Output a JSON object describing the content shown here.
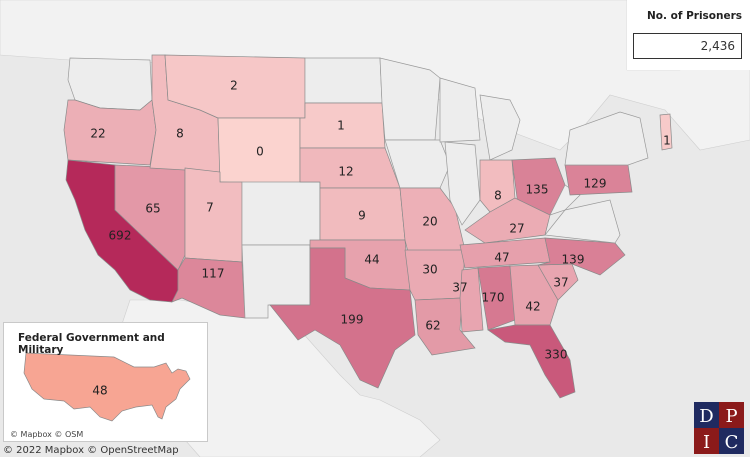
{
  "kpi": {
    "title": "No. of Prisoners",
    "value": "2,436"
  },
  "inset": {
    "title": "Federal Government and Military",
    "value": "48",
    "credit": "© Mapbox  © OSM"
  },
  "credit": "© 2022 Mapbox  © OpenStreetMap",
  "logo": {
    "letters": [
      "D",
      "P",
      "I",
      "C"
    ]
  },
  "states": [
    {
      "name": "Washington",
      "value": null
    },
    {
      "name": "Oregon",
      "value": 22
    },
    {
      "name": "California",
      "value": 692
    },
    {
      "name": "Nevada",
      "value": 65
    },
    {
      "name": "Idaho",
      "value": 8
    },
    {
      "name": "Montana",
      "value": 2
    },
    {
      "name": "Wyoming",
      "value": 0
    },
    {
      "name": "Utah",
      "value": 7
    },
    {
      "name": "Colorado",
      "value": null
    },
    {
      "name": "Arizona",
      "value": 117
    },
    {
      "name": "New Mexico",
      "value": null
    },
    {
      "name": "North Dakota",
      "value": null
    },
    {
      "name": "South Dakota",
      "value": 1
    },
    {
      "name": "Nebraska",
      "value": 12
    },
    {
      "name": "Kansas",
      "value": 9
    },
    {
      "name": "Oklahoma",
      "value": 44
    },
    {
      "name": "Texas",
      "value": 199
    },
    {
      "name": "Minnesota",
      "value": null
    },
    {
      "name": "Iowa",
      "value": null
    },
    {
      "name": "Missouri",
      "value": 20
    },
    {
      "name": "Arkansas",
      "value": 30
    },
    {
      "name": "Louisiana",
      "value": 62
    },
    {
      "name": "Wisconsin",
      "value": null
    },
    {
      "name": "Illinois",
      "value": null
    },
    {
      "name": "Michigan",
      "value": null
    },
    {
      "name": "Indiana",
      "value": 8
    },
    {
      "name": "Ohio",
      "value": 135
    },
    {
      "name": "Kentucky",
      "value": 27
    },
    {
      "name": "Tennessee",
      "value": 47
    },
    {
      "name": "Mississippi",
      "value": 37
    },
    {
      "name": "Alabama",
      "value": 170
    },
    {
      "name": "Georgia",
      "value": 42
    },
    {
      "name": "Florida",
      "value": 330
    },
    {
      "name": "South Carolina",
      "value": 37
    },
    {
      "name": "North Carolina",
      "value": 139
    },
    {
      "name": "Virginia",
      "value": null
    },
    {
      "name": "West Virginia",
      "value": null
    },
    {
      "name": "Pennsylvania",
      "value": 129
    },
    {
      "name": "New York",
      "value": null
    },
    {
      "name": "New Hampshire",
      "value": 1
    }
  ],
  "colors": {
    "low": "#fbd3cf",
    "high": "#b5295a",
    "none": "#ededed",
    "water": "#e9e9e9"
  }
}
